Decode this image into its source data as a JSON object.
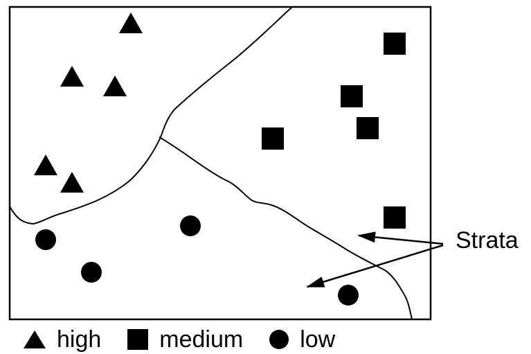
{
  "annotation": {
    "strata_label": "Strata"
  },
  "legend": {
    "items": [
      {
        "symbol": "triangle",
        "label": "high"
      },
      {
        "symbol": "square",
        "label": "medium"
      },
      {
        "symbol": "circle",
        "label": "low"
      }
    ]
  },
  "colors": {
    "ink": "#000000",
    "background": "#ffffff"
  }
}
